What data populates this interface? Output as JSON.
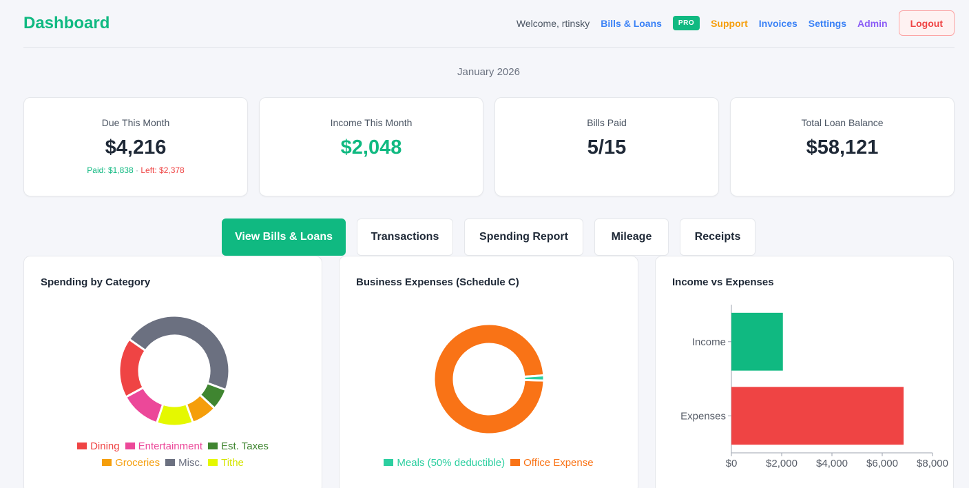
{
  "header": {
    "brand": "Dashboard",
    "welcome": "Welcome, rtinsky",
    "links": {
      "bills_loans": "Bills & Loans",
      "pro_badge": "PRO",
      "support": "Support",
      "invoices": "Invoices",
      "settings": "Settings",
      "admin": "Admin",
      "logout": "Logout"
    }
  },
  "period": "January 2026",
  "cards": {
    "due": {
      "label": "Due This Month",
      "value": "$4,216",
      "paid": "Paid: $1,838",
      "separator": "·",
      "left": "Left: $2,378"
    },
    "income": {
      "label": "Income This Month",
      "value": "$2,048"
    },
    "bills": {
      "label": "Bills Paid",
      "value": "5/15"
    },
    "loans": {
      "label": "Total Loan Balance",
      "value": "$58,121"
    }
  },
  "tabs": [
    "View Bills & Loans",
    "Transactions",
    "Spending Report",
    "Mileage",
    "Receipts"
  ],
  "chart_data": [
    {
      "type": "pie",
      "title": "Spending by Category",
      "categories": [
        "Dining",
        "Entertainment",
        "Est. Taxes",
        "Groceries",
        "Misc.",
        "Tithe"
      ],
      "values": [
        14,
        9.5,
        5,
        6,
        36.5,
        8.5
      ],
      "colors": [
        "#ef4444",
        "#ec4899",
        "#3f8530",
        "#f59e0b",
        "#6b7080",
        "#e5f800"
      ],
      "legend": "bottom"
    },
    {
      "type": "pie",
      "title": "Business Expenses (Schedule C)",
      "categories": [
        "Meals (50% deductible)",
        "Office Expense"
      ],
      "values": [
        1.5,
        98.5
      ],
      "colors": [
        "#2ccfa0",
        "#f97316"
      ],
      "legend": "bottom"
    },
    {
      "type": "bar",
      "orientation": "horizontal",
      "title": "Income vs Expenses",
      "categories": [
        "Income",
        "Expenses"
      ],
      "values": [
        2048,
        6850
      ],
      "colors": [
        "#10b981",
        "#ef4444"
      ],
      "xlim": [
        0,
        8000
      ],
      "xticks": [
        0,
        2000,
        4000,
        6000,
        8000
      ],
      "xtick_labels": [
        "$0",
        "$2,000",
        "$4,000",
        "$6,000",
        "$8,000"
      ]
    }
  ]
}
